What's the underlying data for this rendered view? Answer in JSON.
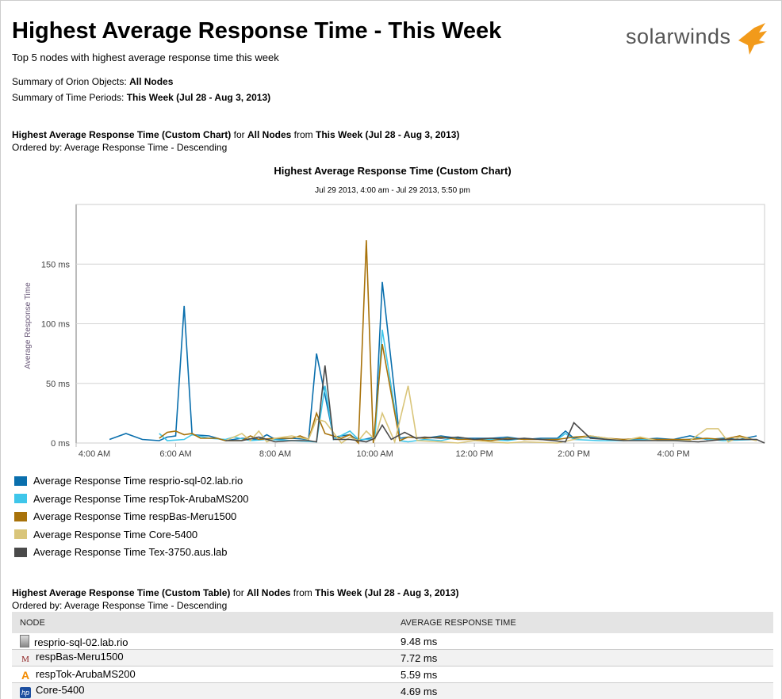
{
  "header": {
    "title": "Highest Average Response Time - This Week",
    "subtitle": "Top 5 nodes with highest average response time this week",
    "logo": "solarwinds",
    "summary_objects_label": "Summary of Orion Objects:",
    "summary_objects_value": "All Nodes",
    "summary_periods_label": "Summary of Time Periods:",
    "summary_periods_value": "This Week (Jul 28 - Aug 3, 2013)"
  },
  "chart_section": {
    "name": "Highest Average Response Time (Custom Chart)",
    "for": "for",
    "objects": "All Nodes",
    "from": "from",
    "period": "This Week (Jul 28 - Aug 3, 2013)",
    "ordered": "Ordered by: Average Response Time - Descending"
  },
  "table_section": {
    "name": "Highest Average Response Time (Custom Table)",
    "for": "for",
    "objects": "All Nodes",
    "from": "from",
    "period": "This Week (Jul 28 - Aug 3, 2013)",
    "ordered": "Ordered by: Average Response Time - Descending",
    "columns": [
      "NODE",
      "AVERAGE RESPONSE TIME"
    ],
    "rows": [
      {
        "icon": "server-icon",
        "node": "resprio-sql-02.lab.rio",
        "value": "9.48 ms"
      },
      {
        "icon": "meru-icon",
        "node": "respBas-Meru1500",
        "value": "7.72 ms"
      },
      {
        "icon": "aruba-icon",
        "node": "respTok-ArubaMS200",
        "value": "5.59 ms"
      },
      {
        "icon": "hp-icon",
        "node": "Core-5400",
        "value": "4.69 ms"
      }
    ]
  },
  "chart_data": {
    "type": "line",
    "title": "Highest Average Response Time (Custom Chart)",
    "subtitle": "Jul 29 2013, 4:00 am - Jul 29 2013, 5:50 pm",
    "ylabel": "Average Response Time",
    "xlabel": "",
    "xlim_hours": [
      4,
      17.83
    ],
    "ylim": [
      0,
      200
    ],
    "grid": true,
    "legend": "bottom-left",
    "yticks": [
      {
        "v": 0,
        "label": "0 ms"
      },
      {
        "v": 50,
        "label": "50 ms"
      },
      {
        "v": 100,
        "label": "100 ms"
      },
      {
        "v": 150,
        "label": "150 ms"
      }
    ],
    "xticks": [
      {
        "v": 4,
        "label": "4:00 AM"
      },
      {
        "v": 6,
        "label": "6:00 AM"
      },
      {
        "v": 8,
        "label": "8:00 AM"
      },
      {
        "v": 10,
        "label": "10:00 AM"
      },
      {
        "v": 12,
        "label": "12:00 PM"
      },
      {
        "v": 14,
        "label": "2:00 PM"
      },
      {
        "v": 16,
        "label": "4:00 PM"
      }
    ],
    "series": [
      {
        "name": "Average Response Time resprio-sql-02.lab.rio",
        "color": "#0a6fad",
        "points": [
          [
            4.67,
            3
          ],
          [
            5,
            8
          ],
          [
            5.33,
            3
          ],
          [
            5.67,
            2
          ],
          [
            5.83,
            5
          ],
          [
            6,
            6
          ],
          [
            6.17,
            115
          ],
          [
            6.33,
            7
          ],
          [
            6.67,
            6
          ],
          [
            7,
            2
          ],
          [
            7.33,
            4
          ],
          [
            7.67,
            3
          ],
          [
            7.83,
            7
          ],
          [
            8,
            3
          ],
          [
            8.33,
            4
          ],
          [
            8.67,
            3
          ],
          [
            8.83,
            75
          ],
          [
            9.17,
            5
          ],
          [
            9.5,
            7
          ],
          [
            9.67,
            2
          ],
          [
            10,
            5
          ],
          [
            10.15,
            135
          ],
          [
            10.5,
            4
          ],
          [
            10.67,
            5
          ],
          [
            11,
            4
          ],
          [
            11.33,
            6
          ],
          [
            11.67,
            4
          ],
          [
            12,
            4
          ],
          [
            12.33,
            4
          ],
          [
            12.67,
            5
          ],
          [
            13,
            3
          ],
          [
            13.33,
            4
          ],
          [
            13.67,
            4
          ],
          [
            13.83,
            10
          ],
          [
            14,
            4
          ],
          [
            14.33,
            5
          ],
          [
            14.67,
            3
          ],
          [
            15,
            3
          ],
          [
            15.33,
            3
          ],
          [
            15.67,
            4
          ],
          [
            16,
            3
          ],
          [
            16.33,
            6
          ],
          [
            16.67,
            3
          ],
          [
            17,
            4
          ],
          [
            17.33,
            3
          ],
          [
            17.67,
            6
          ]
        ]
      },
      {
        "name": "Average Response Time respTok-ArubaMS200",
        "color": "#3fc6ea",
        "points": [
          [
            5.67,
            8
          ],
          [
            5.83,
            2
          ],
          [
            6.17,
            3
          ],
          [
            6.33,
            7
          ],
          [
            6.67,
            4
          ],
          [
            7,
            3
          ],
          [
            7.17,
            5
          ],
          [
            7.5,
            2
          ],
          [
            7.83,
            3
          ],
          [
            8.33,
            2
          ],
          [
            8.83,
            1
          ],
          [
            9,
            48
          ],
          [
            9.17,
            3
          ],
          [
            9.5,
            10
          ],
          [
            9.67,
            3
          ],
          [
            10,
            3
          ],
          [
            10.15,
            95
          ],
          [
            10.5,
            2
          ],
          [
            10.67,
            1
          ],
          [
            11,
            3
          ],
          [
            11.33,
            2
          ],
          [
            11.67,
            5
          ],
          [
            12,
            3
          ],
          [
            12.33,
            3
          ],
          [
            12.67,
            2
          ],
          [
            13,
            4
          ],
          [
            13.33,
            3
          ],
          [
            13.67,
            3
          ],
          [
            13.83,
            8
          ],
          [
            14,
            3
          ],
          [
            14.5,
            2
          ],
          [
            15,
            2
          ],
          [
            15.5,
            3
          ],
          [
            16,
            2
          ],
          [
            16.5,
            4
          ],
          [
            17,
            2
          ],
          [
            17.67,
            3
          ]
        ]
      },
      {
        "name": "Average Response Time respBas-Meru1500",
        "color": "#a8720a",
        "points": [
          [
            5.67,
            4
          ],
          [
            5.83,
            9
          ],
          [
            6,
            10
          ],
          [
            6.17,
            7
          ],
          [
            6.33,
            8
          ],
          [
            6.5,
            4
          ],
          [
            6.83,
            4
          ],
          [
            7,
            2
          ],
          [
            7.33,
            2
          ],
          [
            7.5,
            6
          ],
          [
            7.67,
            3
          ],
          [
            8,
            4
          ],
          [
            8.33,
            4
          ],
          [
            8.5,
            6
          ],
          [
            8.67,
            3
          ],
          [
            8.83,
            25
          ],
          [
            9,
            8
          ],
          [
            9.33,
            4
          ],
          [
            9.5,
            7
          ],
          [
            9.67,
            0
          ],
          [
            9.83,
            170
          ],
          [
            9.97,
            0
          ],
          [
            10.15,
            83
          ],
          [
            10.5,
            2
          ],
          [
            10.67,
            5
          ],
          [
            11,
            4
          ],
          [
            11.33,
            5
          ],
          [
            11.67,
            3
          ],
          [
            12,
            3
          ],
          [
            12.33,
            2
          ],
          [
            12.67,
            4
          ],
          [
            13,
            3
          ],
          [
            13.33,
            3
          ],
          [
            13.67,
            3
          ],
          [
            14,
            5
          ],
          [
            14.33,
            6
          ],
          [
            14.67,
            4
          ],
          [
            15,
            3
          ],
          [
            15.33,
            4
          ],
          [
            15.67,
            3
          ],
          [
            16,
            3
          ],
          [
            16.33,
            3
          ],
          [
            16.67,
            4
          ],
          [
            17,
            3
          ],
          [
            17.33,
            6
          ],
          [
            17.67,
            2
          ]
        ]
      },
      {
        "name": "Average Response Time Core-5400",
        "color": "#d9c57a",
        "points": [
          [
            7,
            2
          ],
          [
            7.33,
            8
          ],
          [
            7.5,
            2
          ],
          [
            7.67,
            10
          ],
          [
            7.83,
            1
          ],
          [
            8,
            4
          ],
          [
            8.33,
            6
          ],
          [
            8.67,
            3
          ],
          [
            8.83,
            20
          ],
          [
            9,
            18
          ],
          [
            9.33,
            0
          ],
          [
            9.5,
            5
          ],
          [
            9.67,
            2
          ],
          [
            9.83,
            10
          ],
          [
            10,
            3
          ],
          [
            10.15,
            25
          ],
          [
            10.4,
            1
          ],
          [
            10.67,
            48
          ],
          [
            10.85,
            2
          ],
          [
            11.33,
            1
          ],
          [
            11.67,
            0
          ],
          [
            12,
            2
          ],
          [
            12.67,
            0
          ],
          [
            13,
            1
          ],
          [
            13.67,
            0
          ],
          [
            14.33,
            6
          ],
          [
            15,
            2
          ],
          [
            15.33,
            5
          ],
          [
            15.67,
            2
          ],
          [
            16.33,
            2
          ],
          [
            16.67,
            12
          ],
          [
            16.9,
            12
          ],
          [
            17.1,
            1
          ],
          [
            17.33,
            5
          ],
          [
            17.67,
            2
          ]
        ]
      },
      {
        "name": "Average Response Time Tex-3750.aus.lab",
        "color": "#4a4a4a",
        "points": [
          [
            7,
            2
          ],
          [
            7.33,
            2
          ],
          [
            7.67,
            5
          ],
          [
            8,
            1
          ],
          [
            8.33,
            2
          ],
          [
            8.67,
            2
          ],
          [
            8.83,
            1
          ],
          [
            9,
            65
          ],
          [
            9.17,
            3
          ],
          [
            9.5,
            3
          ],
          [
            9.83,
            1
          ],
          [
            10,
            4
          ],
          [
            10.15,
            15
          ],
          [
            10.33,
            3
          ],
          [
            10.6,
            9
          ],
          [
            10.83,
            4
          ],
          [
            11,
            5
          ],
          [
            11.33,
            4
          ],
          [
            11.67,
            5
          ],
          [
            12,
            3
          ],
          [
            12.33,
            4
          ],
          [
            12.67,
            3
          ],
          [
            13,
            4
          ],
          [
            13.33,
            3
          ],
          [
            13.83,
            1
          ],
          [
            14,
            17
          ],
          [
            14.33,
            4
          ],
          [
            14.67,
            3
          ],
          [
            15,
            2
          ],
          [
            15.5,
            2
          ],
          [
            16,
            2
          ],
          [
            16.5,
            1
          ],
          [
            17,
            3
          ],
          [
            17.67,
            3
          ],
          [
            17.83,
            0
          ]
        ]
      }
    ]
  }
}
